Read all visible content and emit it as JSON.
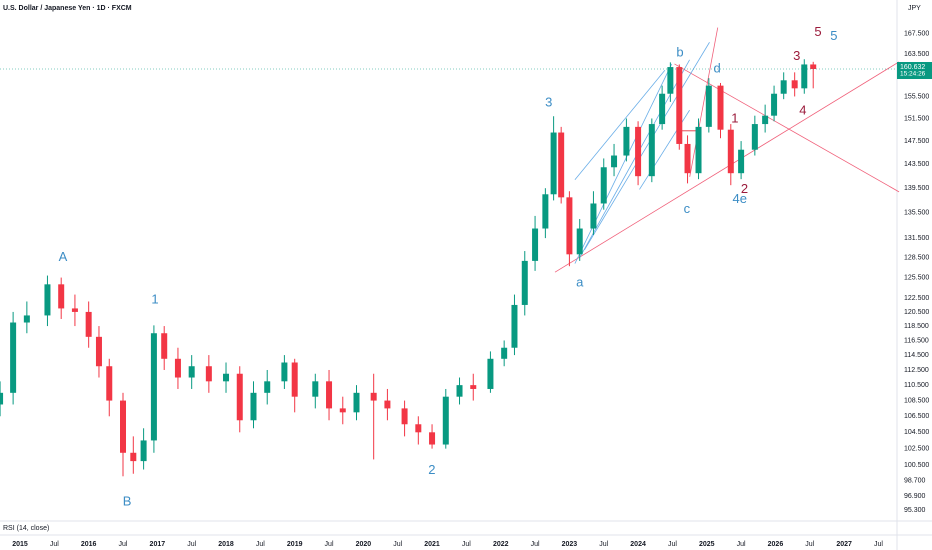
{
  "header": {
    "symbol": "U.S. Dollar / Japanese Yen · 1D · FXCM",
    "currency": "JPY"
  },
  "chart_data": {
    "type": "candlestick",
    "log_scale": true,
    "grid": false,
    "up_color": "#089981",
    "down_color": "#f23645",
    "xlim": [
      2014.709,
      2027.77
    ],
    "ylim": [
      94.2,
      174.3
    ],
    "x": [
      2014.71,
      2014.9,
      2015.1,
      2015.4,
      2015.6,
      2015.8,
      2016.0,
      2016.15,
      2016.3,
      2016.5,
      2016.65,
      2016.8,
      2016.95,
      2017.1,
      2017.3,
      2017.5,
      2017.75,
      2018.0,
      2018.2,
      2018.4,
      2018.6,
      2018.85,
      2019.0,
      2019.3,
      2019.5,
      2019.7,
      2019.9,
      2020.15,
      2020.35,
      2020.6,
      2020.8,
      2021.0,
      2021.2,
      2021.4,
      2021.6,
      2021.85,
      2022.05,
      2022.2,
      2022.35,
      2022.5,
      2022.65,
      2022.77,
      2022.88,
      2023.0,
      2023.15,
      2023.35,
      2023.5,
      2023.65,
      2023.83,
      2024.0,
      2024.2,
      2024.35,
      2024.47,
      2024.6,
      2024.72,
      2024.88,
      2025.03,
      2025.2,
      2025.35,
      2025.5,
      2025.7,
      2025.85,
      2025.98,
      2026.12,
      2026.28,
      2026.42,
      2026.55
    ],
    "open": [
      108,
      109.5,
      119,
      120,
      124.5,
      121,
      120.5,
      117,
      113,
      108.5,
      102,
      101,
      103.5,
      117.5,
      114,
      111.5,
      113,
      111,
      112,
      106,
      109.5,
      111,
      113.5,
      109,
      111,
      107.5,
      107,
      109.5,
      108.5,
      107.5,
      105.5,
      104.5,
      103,
      109,
      110.5,
      110,
      114,
      115.5,
      121.5,
      128,
      133,
      138.5,
      149,
      138,
      129,
      133,
      137,
      143,
      145,
      150,
      141.5,
      150.5,
      156,
      161,
      147,
      142,
      150,
      157.5,
      149.5,
      142,
      146,
      150.5,
      152,
      156,
      158.5,
      157,
      161.5
    ],
    "high": [
      111,
      120.5,
      122,
      125.8,
      125.5,
      123,
      122,
      118.5,
      114,
      109.5,
      104,
      105,
      118.6,
      118.5,
      115.5,
      114.5,
      114.5,
      113.5,
      113,
      111,
      112.5,
      114.5,
      114,
      112,
      112.5,
      109,
      110.5,
      112,
      110,
      108.5,
      106.5,
      105.5,
      110,
      111.5,
      112,
      115,
      116.5,
      123,
      129.5,
      135,
      139.5,
      151.9,
      150,
      139,
      134.5,
      139,
      144.5,
      147,
      151.5,
      151,
      151.5,
      157.5,
      161.9,
      161.5,
      148.5,
      151.5,
      158.9,
      158,
      150.5,
      147.5,
      152,
      154,
      157.5,
      160,
      160,
      162.5,
      162
    ],
    "low": [
      106.5,
      108,
      117.5,
      118.5,
      119.5,
      118.5,
      115.5,
      111.5,
      106.5,
      99.2,
      99.5,
      100,
      102,
      112.5,
      110,
      110,
      109.5,
      109.5,
      104.5,
      105,
      108,
      110,
      107,
      107.5,
      106,
      105.5,
      106,
      101.2,
      106,
      104,
      103,
      102.5,
      102.5,
      108,
      108.5,
      109.5,
      113,
      114.5,
      120,
      126.5,
      131.5,
      137.5,
      137,
      127.2,
      128,
      132,
      136,
      141.5,
      144,
      140,
      140.5,
      149.5,
      154.5,
      146,
      140.3,
      141,
      149,
      148,
      140,
      141,
      145,
      149,
      151,
      155,
      155.5,
      156,
      157
    ],
    "close": [
      109.5,
      119,
      120,
      124.5,
      121,
      120.5,
      117,
      113,
      108.5,
      102,
      101,
      103.5,
      117.5,
      114,
      111.5,
      113,
      111,
      112,
      106,
      109.5,
      111,
      113.5,
      109,
      111,
      107.5,
      107,
      109.5,
      108.5,
      107.5,
      105.5,
      104.5,
      103,
      109,
      110.5,
      110,
      114,
      115.5,
      121.5,
      128,
      133,
      138.5,
      149,
      138,
      129,
      133,
      137,
      143,
      145,
      150,
      141.5,
      150.5,
      156,
      161,
      147,
      142,
      150,
      157.5,
      149.5,
      142,
      146,
      150.5,
      152,
      156,
      158.5,
      157,
      161.5,
      160.632
    ],
    "countdown": "15:24:26",
    "xticks": [
      2015,
      {
        "value": 2015.5,
        "label": "Jul"
      },
      2016,
      {
        "value": 2016.5,
        "label": "Jul"
      },
      2017,
      {
        "value": 2017.5,
        "label": "Jul"
      },
      2018,
      {
        "value": 2018.5,
        "label": "Jul"
      },
      2019,
      {
        "value": 2019.5,
        "label": "Jul"
      },
      2020,
      {
        "value": 2020.5,
        "label": "Jul"
      },
      2021,
      {
        "value": 2021.5,
        "label": "Jul"
      },
      2022,
      {
        "value": 2022.5,
        "label": "Jul"
      },
      2023,
      {
        "value": 2023.5,
        "label": "Jul"
      },
      2024,
      {
        "value": 2024.5,
        "label": "Jul"
      },
      2025,
      {
        "value": 2025.5,
        "label": "Jul"
      },
      2026,
      {
        "value": 2026.5,
        "label": "Jul"
      },
      2027,
      {
        "value": 2027.5,
        "label": "Jul"
      }
    ],
    "yticks": [
      {
        "value": 167.5,
        "label": "167.500"
      },
      {
        "value": 163.5,
        "label": "163.500"
      },
      {
        "value": 155.5,
        "label": "155.500"
      },
      {
        "value": 151.5,
        "label": "151.500"
      },
      {
        "value": 147.5,
        "label": "147.500"
      },
      {
        "value": 143.5,
        "label": "143.500"
      },
      {
        "value": 139.5,
        "label": "139.500"
      },
      {
        "value": 135.5,
        "label": "135.500"
      },
      {
        "value": 131.5,
        "label": "131.500"
      },
      {
        "value": 128.5,
        "label": "128.500"
      },
      {
        "value": 125.5,
        "label": "125.500"
      },
      {
        "value": 122.5,
        "label": "122.500"
      },
      {
        "value": 120.5,
        "label": "120.500"
      },
      {
        "value": 118.5,
        "label": "118.500"
      },
      {
        "value": 116.5,
        "label": "116.500"
      },
      {
        "value": 114.5,
        "label": "114.500"
      },
      {
        "value": 112.5,
        "label": "112.500"
      },
      {
        "value": 110.5,
        "label": "110.500"
      },
      {
        "value": 108.5,
        "label": "108.500"
      },
      {
        "value": 106.5,
        "label": "106.500"
      },
      {
        "value": 104.5,
        "label": "104.500"
      },
      {
        "value": 102.5,
        "label": "102.500"
      },
      {
        "value": 100.5,
        "label": "100.500"
      },
      {
        "value": 98.7,
        "label": "98.700"
      },
      {
        "value": 96.9,
        "label": "96.900"
      },
      {
        "value": 95.3,
        "label": "95.300"
      }
    ],
    "annotations": [
      {
        "text": "A",
        "x": 2015.626,
        "y": 128.5,
        "color": "#3c8dc5"
      },
      {
        "text": "B",
        "x": 2016.56,
        "y": 96.2,
        "color": "#3c8dc5"
      },
      {
        "text": "1",
        "x": 2016.966,
        "y": 122.2,
        "color": "#3c8dc5"
      },
      {
        "text": "2",
        "x": 2020.997,
        "y": 99.9,
        "color": "#3c8dc5"
      },
      {
        "text": "3",
        "x": 2022.7,
        "y": 154.3,
        "color": "#3c8dc5"
      },
      {
        "text": "a",
        "x": 2023.15,
        "y": 124.7,
        "color": "#3c8dc5"
      },
      {
        "text": "b",
        "x": 2024.61,
        "y": 163.7,
        "color": "#3c8dc5"
      },
      {
        "text": "c",
        "x": 2024.71,
        "y": 136,
        "color": "#3c8dc5"
      },
      {
        "text": "d",
        "x": 2025.15,
        "y": 160.6,
        "color": "#3c8dc5"
      },
      {
        "text": "4e",
        "x": 2025.48,
        "y": 137.6,
        "color": "#3c8dc5"
      },
      {
        "text": "5",
        "x": 2026.85,
        "y": 166.9,
        "color": "#3c8dc5"
      },
      {
        "text": "1",
        "x": 2025.41,
        "y": 151.4,
        "color": "#9b1b3b"
      },
      {
        "text": "2",
        "x": 2025.55,
        "y": 139.3,
        "color": "#9b1b3b"
      },
      {
        "text": "3",
        "x": 2026.31,
        "y": 163,
        "color": "#9b1b3b"
      },
      {
        "text": "4",
        "x": 2026.4,
        "y": 152.8,
        "color": "#9b1b3b"
      },
      {
        "text": "5",
        "x": 2026.62,
        "y": 167.7,
        "color": "#9b1b3b"
      }
    ],
    "trendlines": [
      {
        "x": [
          2022.79,
          2027.8
        ],
        "y": [
          126.3,
          162.0
        ],
        "color": "#f0607a"
      },
      {
        "x": [
          2024.53,
          2027.8
        ],
        "y": [
          161.6,
          138.9
        ],
        "color": "#f0607a"
      },
      {
        "x": [
          2024.752,
          2025.16
        ],
        "y": [
          141.4,
          168.7
        ],
        "color": "#f0607a"
      },
      {
        "x": [
          2024.61,
          2024.87
        ],
        "y": [
          149.3,
          149.3
        ],
        "color": "#e0303f"
      },
      {
        "x": [
          2023.08,
          2024.49
        ],
        "y": [
          127.6,
          161.6
        ],
        "color": "#6aaee8"
      },
      {
        "x": [
          2023.22,
          2025.04
        ],
        "y": [
          129.7,
          165.8
        ],
        "color": "#6aaee8"
      },
      {
        "x": [
          2023.15,
          2024.75
        ],
        "y": [
          128.5,
          162.4
        ],
        "color": "#6aaee8"
      },
      {
        "x": [
          2023.08,
          2024.39
        ],
        "y": [
          140.9,
          160.4
        ],
        "color": "#6aaee8"
      },
      {
        "x": [
          2024.02,
          2024.75
        ],
        "y": [
          139.3,
          153.0
        ],
        "color": "#6aaee8"
      }
    ]
  },
  "indicator": {
    "label": "RSI (14, close)"
  }
}
